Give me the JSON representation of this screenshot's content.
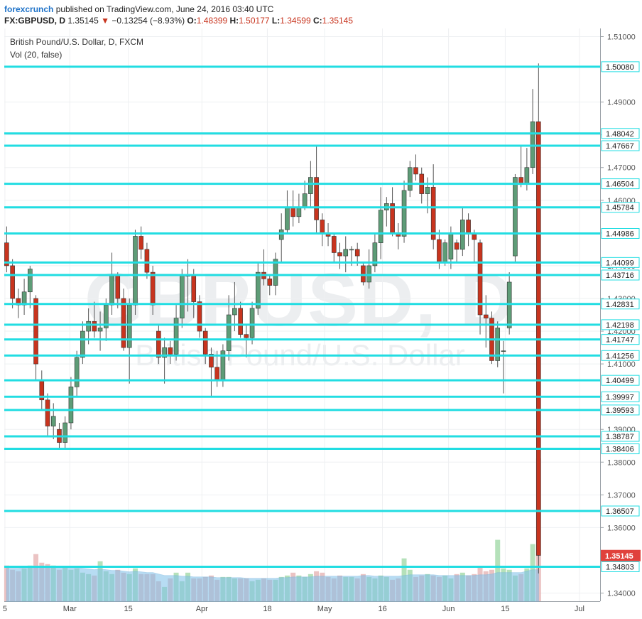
{
  "header": {
    "brand": "forexcrunch",
    "published": "published on TradingView.com, June 24, 2016 03:40 UTC",
    "symbol": "FX:GBPUSD, D",
    "last": "1.35145",
    "change_arrow": "▼",
    "change": "−0.13254 (−8.93%)",
    "o_label": "O:",
    "o": "1.48399",
    "h_label": "H:",
    "h": "1.50177",
    "l_label": "L:",
    "l": "1.34599",
    "c_label": "C:",
    "c": "1.35145"
  },
  "legend": {
    "series": "British Pound/U.S. Dollar, D, FXCM",
    "volume": "Vol (20, false)"
  },
  "watermark": {
    "big": "GBPUSD, D",
    "small": "British Pound/U.S. Dollar"
  },
  "colors": {
    "up": "#5e9c77",
    "down": "#c8341e",
    "hline": "#22dde2",
    "vol_up": "#a8dcae",
    "vol_down": "#e8b8b8",
    "vol_ma": "#7ec0ea",
    "price_tag": "#e0413c"
  },
  "chart_data": {
    "type": "candlestick",
    "ylim": [
      1.3375,
      1.5125
    ],
    "y_ticks": [
      "1.51000",
      "1.49000",
      "1.48000",
      "1.47000",
      "1.46000",
      "1.45000",
      "1.44000",
      "1.43000",
      "1.42000",
      "1.41000",
      "1.40000",
      "1.39000",
      "1.38000",
      "1.37000",
      "1.36000",
      "1.34000"
    ],
    "x_ticks": [
      "5",
      "Mar",
      "15",
      "Apr",
      "18",
      "May",
      "16",
      "Jun",
      "15",
      "Jul"
    ],
    "horizontal_levels": [
      "1.50080",
      "1.48042",
      "1.47667",
      "1.46504",
      "1.45784",
      "1.44986",
      "1.44099",
      "1.43716",
      "1.42831",
      "1.42198",
      "1.41747",
      "1.41256",
      "1.40499",
      "1.39997",
      "1.39593",
      "1.38787",
      "1.38406",
      "1.36507",
      "1.34803"
    ],
    "last_price": "1.35145",
    "candles": [
      [
        1.447,
        1.452,
        1.438,
        1.44
      ],
      [
        1.44,
        1.442,
        1.427,
        1.43
      ],
      [
        1.43,
        1.433,
        1.424,
        1.428
      ],
      [
        1.428,
        1.436,
        1.425,
        1.432
      ],
      [
        1.432,
        1.44,
        1.427,
        1.439
      ],
      [
        1.43,
        1.431,
        1.405,
        1.41
      ],
      [
        1.405,
        1.408,
        1.396,
        1.399
      ],
      [
        1.399,
        1.401,
        1.388,
        1.391
      ],
      [
        1.391,
        1.398,
        1.387,
        1.394
      ],
      [
        1.39,
        1.392,
        1.384,
        1.386
      ],
      [
        1.386,
        1.394,
        1.384,
        1.392
      ],
      [
        1.392,
        1.406,
        1.39,
        1.403
      ],
      [
        1.403,
        1.414,
        1.4,
        1.412
      ],
      [
        1.412,
        1.423,
        1.41,
        1.42
      ],
      [
        1.42,
        1.427,
        1.416,
        1.423
      ],
      [
        1.423,
        1.429,
        1.418,
        1.42
      ],
      [
        1.42,
        1.426,
        1.414,
        1.421
      ],
      [
        1.421,
        1.43,
        1.417,
        1.428
      ],
      [
        1.428,
        1.444,
        1.425,
        1.437
      ],
      [
        1.437,
        1.438,
        1.427,
        1.43
      ],
      [
        1.43,
        1.433,
        1.414,
        1.415
      ],
      [
        1.415,
        1.43,
        1.404,
        1.428
      ],
      [
        1.428,
        1.451,
        1.425,
        1.449
      ],
      [
        1.449,
        1.452,
        1.442,
        1.445
      ],
      [
        1.445,
        1.447,
        1.436,
        1.438
      ],
      [
        1.438,
        1.44,
        1.425,
        1.428
      ],
      [
        1.42,
        1.422,
        1.41,
        1.412
      ],
      [
        1.412,
        1.418,
        1.404,
        1.415
      ],
      [
        1.415,
        1.417,
        1.41,
        1.413
      ],
      [
        1.413,
        1.428,
        1.411,
        1.424
      ],
      [
        1.424,
        1.439,
        1.421,
        1.437
      ],
      [
        1.437,
        1.442,
        1.426,
        1.437
      ],
      [
        1.437,
        1.439,
        1.424,
        1.429
      ],
      [
        1.429,
        1.431,
        1.418,
        1.42
      ],
      [
        1.42,
        1.421,
        1.41,
        1.413
      ],
      [
        1.413,
        1.415,
        1.4,
        1.409
      ],
      [
        1.409,
        1.414,
        1.403,
        1.405
      ],
      [
        1.405,
        1.416,
        1.403,
        1.414
      ],
      [
        1.414,
        1.431,
        1.411,
        1.425
      ],
      [
        1.425,
        1.435,
        1.42,
        1.427
      ],
      [
        1.427,
        1.429,
        1.418,
        1.419
      ],
      [
        1.419,
        1.422,
        1.412,
        1.418
      ],
      [
        1.418,
        1.429,
        1.416,
        1.427
      ],
      [
        1.427,
        1.441,
        1.425,
        1.438
      ],
      [
        1.438,
        1.445,
        1.434,
        1.436
      ],
      [
        1.436,
        1.437,
        1.431,
        1.434
      ],
      [
        1.434,
        1.444,
        1.431,
        1.442
      ],
      [
        1.448,
        1.456,
        1.441,
        1.451
      ],
      [
        1.451,
        1.463,
        1.45,
        1.458
      ],
      [
        1.458,
        1.463,
        1.452,
        1.455
      ],
      [
        1.455,
        1.462,
        1.453,
        1.458
      ],
      [
        1.458,
        1.466,
        1.457,
        1.462
      ],
      [
        1.462,
        1.472,
        1.458,
        1.467
      ],
      [
        1.467,
        1.477,
        1.45,
        1.454
      ],
      [
        1.454,
        1.456,
        1.446,
        1.45
      ],
      [
        1.45,
        1.453,
        1.446,
        1.449
      ],
      [
        1.449,
        1.45,
        1.441,
        1.444
      ],
      [
        1.444,
        1.447,
        1.439,
        1.443
      ],
      [
        1.443,
        1.449,
        1.438,
        1.445
      ],
      [
        1.445,
        1.446,
        1.44,
        1.445
      ],
      [
        1.445,
        1.447,
        1.44,
        1.443
      ],
      [
        1.44,
        1.441,
        1.434,
        1.435
      ],
      [
        1.435,
        1.445,
        1.433,
        1.44
      ],
      [
        1.44,
        1.45,
        1.438,
        1.447
      ],
      [
        1.447,
        1.464,
        1.442,
        1.457
      ],
      [
        1.457,
        1.461,
        1.452,
        1.459
      ],
      [
        1.459,
        1.464,
        1.449,
        1.45
      ],
      [
        1.45,
        1.453,
        1.445,
        1.449
      ],
      [
        1.449,
        1.466,
        1.447,
        1.463
      ],
      [
        1.463,
        1.472,
        1.461,
        1.47
      ],
      [
        1.47,
        1.474,
        1.466,
        1.468
      ],
      [
        1.468,
        1.47,
        1.459,
        1.462
      ],
      [
        1.462,
        1.467,
        1.456,
        1.464
      ],
      [
        1.464,
        1.471,
        1.445,
        1.448
      ],
      [
        1.448,
        1.451,
        1.439,
        1.441
      ],
      [
        1.441,
        1.448,
        1.44,
        1.447
      ],
      [
        1.442,
        1.452,
        1.439,
        1.45
      ],
      [
        1.447,
        1.448,
        1.441,
        1.445
      ],
      [
        1.445,
        1.458,
        1.443,
        1.454
      ],
      [
        1.454,
        1.456,
        1.446,
        1.45
      ],
      [
        1.45,
        1.451,
        1.441,
        1.448
      ],
      [
        1.447,
        1.448,
        1.419,
        1.425
      ],
      [
        1.425,
        1.431,
        1.415,
        1.424
      ],
      [
        1.424,
        1.426,
        1.41,
        1.411
      ],
      [
        1.411,
        1.423,
        1.409,
        1.421
      ],
      [
        1.414,
        1.417,
        1.401,
        1.414
      ],
      [
        1.421,
        1.438,
        1.419,
        1.435
      ],
      [
        1.443,
        1.468,
        1.441,
        1.467
      ],
      [
        1.467,
        1.477,
        1.464,
        1.465
      ],
      [
        1.465,
        1.476,
        1.463,
        1.47
      ],
      [
        1.47,
        1.494,
        1.468,
        1.484
      ],
      [
        1.484,
        1.5018,
        1.346,
        1.3515
      ]
    ],
    "volume": [
      0.25,
      0.22,
      0.21,
      0.23,
      0.25,
      0.33,
      0.27,
      0.26,
      0.25,
      0.22,
      0.24,
      0.22,
      0.23,
      0.2,
      0.19,
      0.18,
      0.28,
      0.21,
      0.19,
      0.22,
      0.2,
      0.19,
      0.23,
      0.19,
      0.19,
      0.19,
      0.14,
      0.1,
      0.16,
      0.2,
      0.14,
      0.2,
      0.16,
      0.16,
      0.17,
      0.18,
      0.15,
      0.17,
      0.17,
      0.16,
      0.16,
      0.16,
      0.14,
      0.15,
      0.16,
      0.15,
      0.15,
      0.17,
      0.18,
      0.2,
      0.18,
      0.17,
      0.19,
      0.21,
      0.2,
      0.17,
      0.16,
      0.18,
      0.17,
      0.17,
      0.16,
      0.19,
      0.17,
      0.16,
      0.18,
      0.17,
      0.15,
      0.16,
      0.3,
      0.22,
      0.17,
      0.18,
      0.19,
      0.18,
      0.17,
      0.18,
      0.16,
      0.19,
      0.2,
      0.18,
      0.19,
      0.24,
      0.21,
      0.22,
      0.43,
      0.23,
      0.22,
      0.18,
      0.19,
      0.23,
      0.4,
      1.0
    ],
    "volume_ma": [
      0.23,
      0.23,
      0.23,
      0.235,
      0.24,
      0.245,
      0.245,
      0.245,
      0.24,
      0.24,
      0.24,
      0.235,
      0.235,
      0.23,
      0.225,
      0.22,
      0.225,
      0.22,
      0.215,
      0.215,
      0.21,
      0.205,
      0.21,
      0.205,
      0.2,
      0.2,
      0.19,
      0.18,
      0.18,
      0.18,
      0.175,
      0.175,
      0.17,
      0.17,
      0.17,
      0.17,
      0.165,
      0.165,
      0.165,
      0.165,
      0.165,
      0.16,
      0.16,
      0.16,
      0.16,
      0.16,
      0.16,
      0.165,
      0.165,
      0.17,
      0.17,
      0.17,
      0.17,
      0.175,
      0.175,
      0.175,
      0.175,
      0.175,
      0.175,
      0.175,
      0.175,
      0.18,
      0.18,
      0.175,
      0.175,
      0.175,
      0.175,
      0.175,
      0.18,
      0.185,
      0.185,
      0.185,
      0.185,
      0.185,
      0.18,
      0.18,
      0.18,
      0.18,
      0.18,
      0.18,
      0.18,
      0.185,
      0.185,
      0.19,
      0.2,
      0.2,
      0.2,
      0.2,
      0.2,
      0.21,
      0.22,
      0.22
    ]
  }
}
